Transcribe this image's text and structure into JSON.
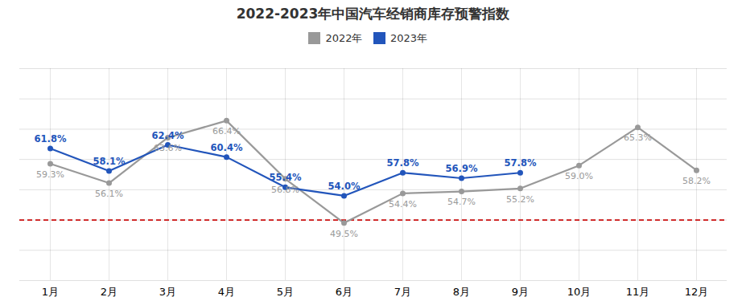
{
  "chart_data": {
    "type": "line",
    "title": "2022-2023年中国汽车经销商库存预警指数",
    "categories": [
      "1月",
      "2月",
      "3月",
      "4月",
      "5月",
      "6月",
      "7月",
      "8月",
      "9月",
      "10月",
      "11月",
      "12月"
    ],
    "series": [
      {
        "name": "2022年",
        "color": "#999999",
        "marker": "circle",
        "values": [
          59.3,
          56.1,
          63.6,
          66.4,
          56.8,
          49.5,
          54.4,
          54.7,
          55.2,
          59.0,
          65.3,
          58.2
        ],
        "value_labels": [
          "59.3%",
          "56.1%",
          "63.6%",
          "66.4%",
          "56.8%",
          "49.5%",
          "54.4%",
          "54.7%",
          "55.2%",
          "59.0%",
          "65.3%",
          "58.2%"
        ]
      },
      {
        "name": "2023年",
        "color": "#2255bb",
        "marker": "circle",
        "values": [
          61.8,
          58.1,
          62.4,
          60.4,
          55.4,
          54.0,
          57.8,
          56.9,
          57.8,
          null,
          null,
          null
        ],
        "value_labels": [
          "61.8%",
          "58.1%",
          "62.4%",
          "60.4%",
          "55.4%",
          "54.0%",
          "57.8%",
          "56.9%",
          "57.8%",
          null,
          null,
          null
        ]
      }
    ],
    "reference_lines": [
      {
        "value": 50.0,
        "color": "#cc1111",
        "line_style": "dashed"
      }
    ],
    "ylim": [
      40,
      75
    ],
    "yticks": [
      40,
      45,
      50,
      55,
      60,
      65,
      70,
      75
    ],
    "grid": true,
    "tick_labels": "x",
    "data_labels": true,
    "legend": "top"
  }
}
